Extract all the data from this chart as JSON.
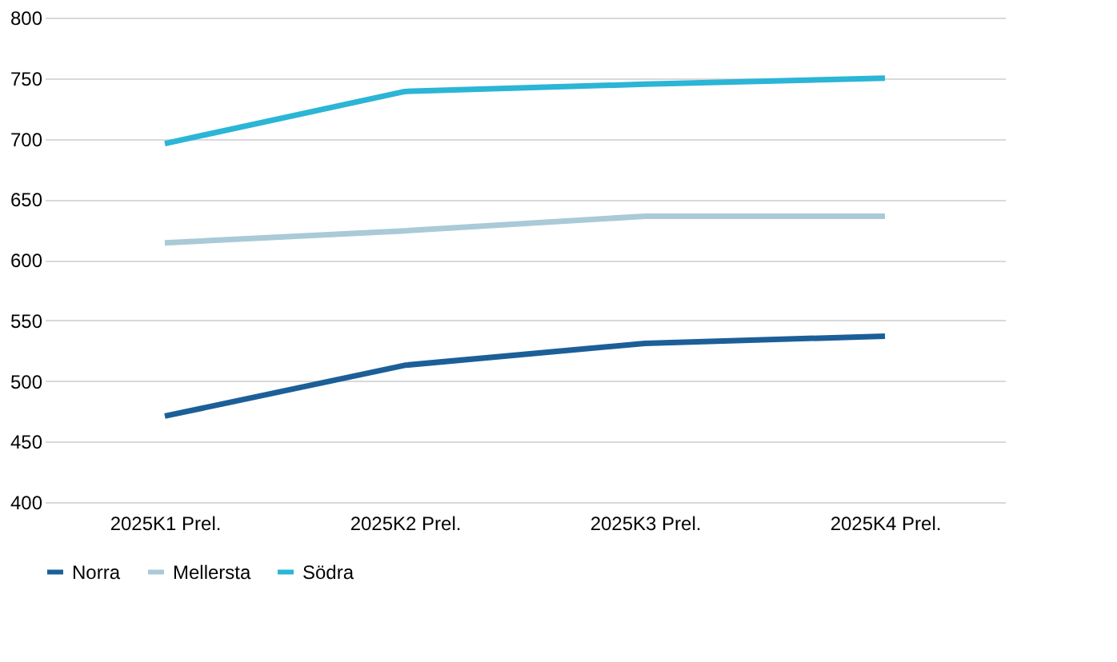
{
  "chart_data": {
    "type": "line",
    "categories": [
      "2025K1 Prel.",
      "2025K2 Prel.",
      "2025K3 Prel.",
      "2025K4 Prel."
    ],
    "series": [
      {
        "name": "Norra",
        "color": "#1c5f98",
        "values": [
          471,
          513,
          531,
          537
        ]
      },
      {
        "name": "Mellersta",
        "color": "#a9cad6",
        "values": [
          614,
          624,
          636,
          636
        ]
      },
      {
        "name": "Södra",
        "color": "#2bb5d6",
        "values": [
          696,
          739,
          745,
          750
        ]
      }
    ],
    "ylim": [
      400,
      800
    ],
    "yticks": [
      400,
      450,
      500,
      550,
      600,
      650,
      700,
      750,
      800
    ],
    "grid": "y",
    "legend": "bottom",
    "marker": "none",
    "line_style": "solid"
  }
}
